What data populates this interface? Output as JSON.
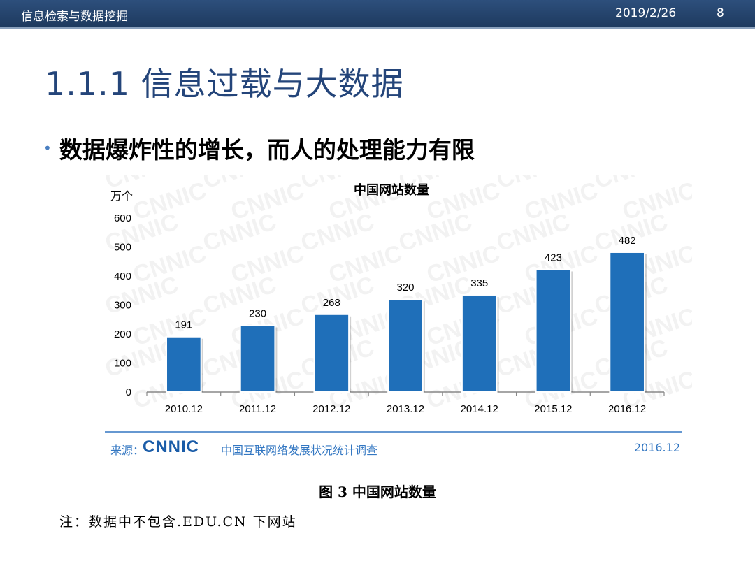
{
  "header": {
    "course": "信息检索与数据挖掘",
    "date": "2019/2/26",
    "page": "8"
  },
  "slide": {
    "title": "1.1.1 信息过载与大数据",
    "bullet": "数据爆炸性的增长，而人的处理能力有限"
  },
  "chart_data": {
    "type": "bar",
    "title": "中国网站数量",
    "unit_label": "万个",
    "categories": [
      "2010.12",
      "2011.12",
      "2012.12",
      "2013.12",
      "2014.12",
      "2015.12",
      "2016.12"
    ],
    "values": [
      191,
      230,
      268,
      320,
      335,
      423,
      482
    ],
    "ylim": [
      0,
      600
    ],
    "yticks": [
      0,
      100,
      200,
      300,
      400,
      500,
      600
    ],
    "grid": false,
    "bar_color": "#1f6fb9",
    "watermark": "CNNIC"
  },
  "source": {
    "label": "来源：",
    "logo": "CNNIC",
    "org": "中国互联网络发展状况统计调查",
    "date": "2016.12"
  },
  "caption": "图 3 中国网站数量",
  "note": "注：数据中不包含.EDU.CN 下网站",
  "colors": {
    "header_bg": "#1e3a5f",
    "title": "#24457a",
    "accent": "#3377c2"
  }
}
